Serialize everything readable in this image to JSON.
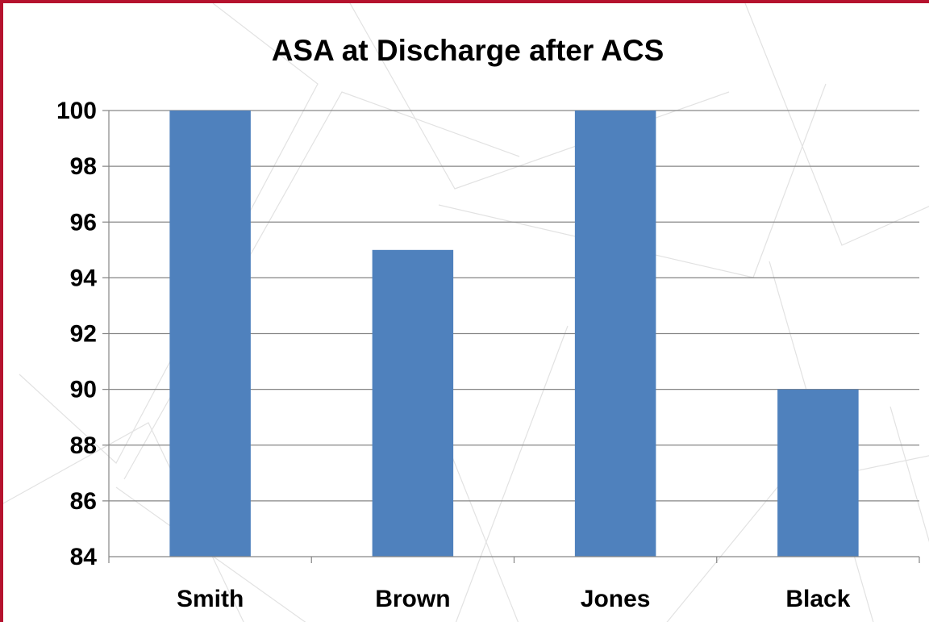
{
  "chart_data": {
    "type": "bar",
    "title": "ASA at Discharge after ACS",
    "categories": [
      "Smith",
      "Brown",
      "Jones",
      "Black"
    ],
    "values": [
      100,
      95,
      100,
      90
    ],
    "xlabel": "",
    "ylabel": "",
    "ylim": [
      84,
      100
    ],
    "yticks": [
      84,
      86,
      88,
      90,
      92,
      94,
      96,
      98,
      100
    ],
    "grid": true,
    "legend": "none",
    "bar_color": "#4f81bd"
  },
  "colors": {
    "frame": "#b5122e",
    "gridline": "#868686",
    "decor_lines": "#dedede"
  }
}
